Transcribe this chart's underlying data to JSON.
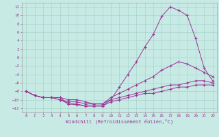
{
  "xlabel": "Windchill (Refroidissement éolien,°C)",
  "bg_color": "#c8eae4",
  "grid_color": "#a8d4cc",
  "line_color": "#993399",
  "xlim": [
    -0.5,
    22.5
  ],
  "ylim": [
    -13,
    13
  ],
  "yticks": [
    -12,
    -10,
    -8,
    -6,
    -4,
    -2,
    0,
    2,
    4,
    6,
    8,
    10,
    12
  ],
  "xticks": [
    0,
    1,
    2,
    3,
    4,
    5,
    6,
    7,
    8,
    9,
    10,
    11,
    12,
    13,
    14,
    15,
    16,
    17,
    18,
    19,
    20,
    21,
    22
  ],
  "lines": [
    [
      -8,
      -9,
      -9.5,
      -9.5,
      -9.5,
      -11,
      -11.2,
      -11.5,
      -11.5,
      -11.5,
      -10,
      -7,
      -4,
      -1,
      2.5,
      5.5,
      9.8,
      12,
      11.2,
      10,
      4.5,
      -2.5,
      -5.5
    ],
    [
      -8,
      -9,
      -9.5,
      -9.5,
      -9.5,
      -10,
      -10,
      -10.5,
      -11,
      -11,
      -9.5,
      -8.5,
      -7.5,
      -6.5,
      -5.5,
      -4.5,
      -3,
      -2,
      -1,
      -1.5,
      -2.5,
      -3.5,
      -4.5
    ],
    [
      -8,
      -9,
      -9.5,
      -9.5,
      -10,
      -10.5,
      -10.5,
      -11,
      -11,
      -11,
      -10,
      -9.5,
      -9,
      -8.5,
      -8,
      -7.5,
      -7,
      -6.5,
      -6.5,
      -6,
      -5.5,
      -5.5,
      -6
    ],
    [
      -8,
      -9,
      -9.5,
      -9.5,
      -10,
      -11,
      -11,
      -11.5,
      -11.5,
      -11.5,
      -10.5,
      -10,
      -9.5,
      -9,
      -8.5,
      -8.5,
      -8,
      -7.5,
      -7,
      -7,
      -6.5,
      -6.5,
      -6.5
    ]
  ]
}
